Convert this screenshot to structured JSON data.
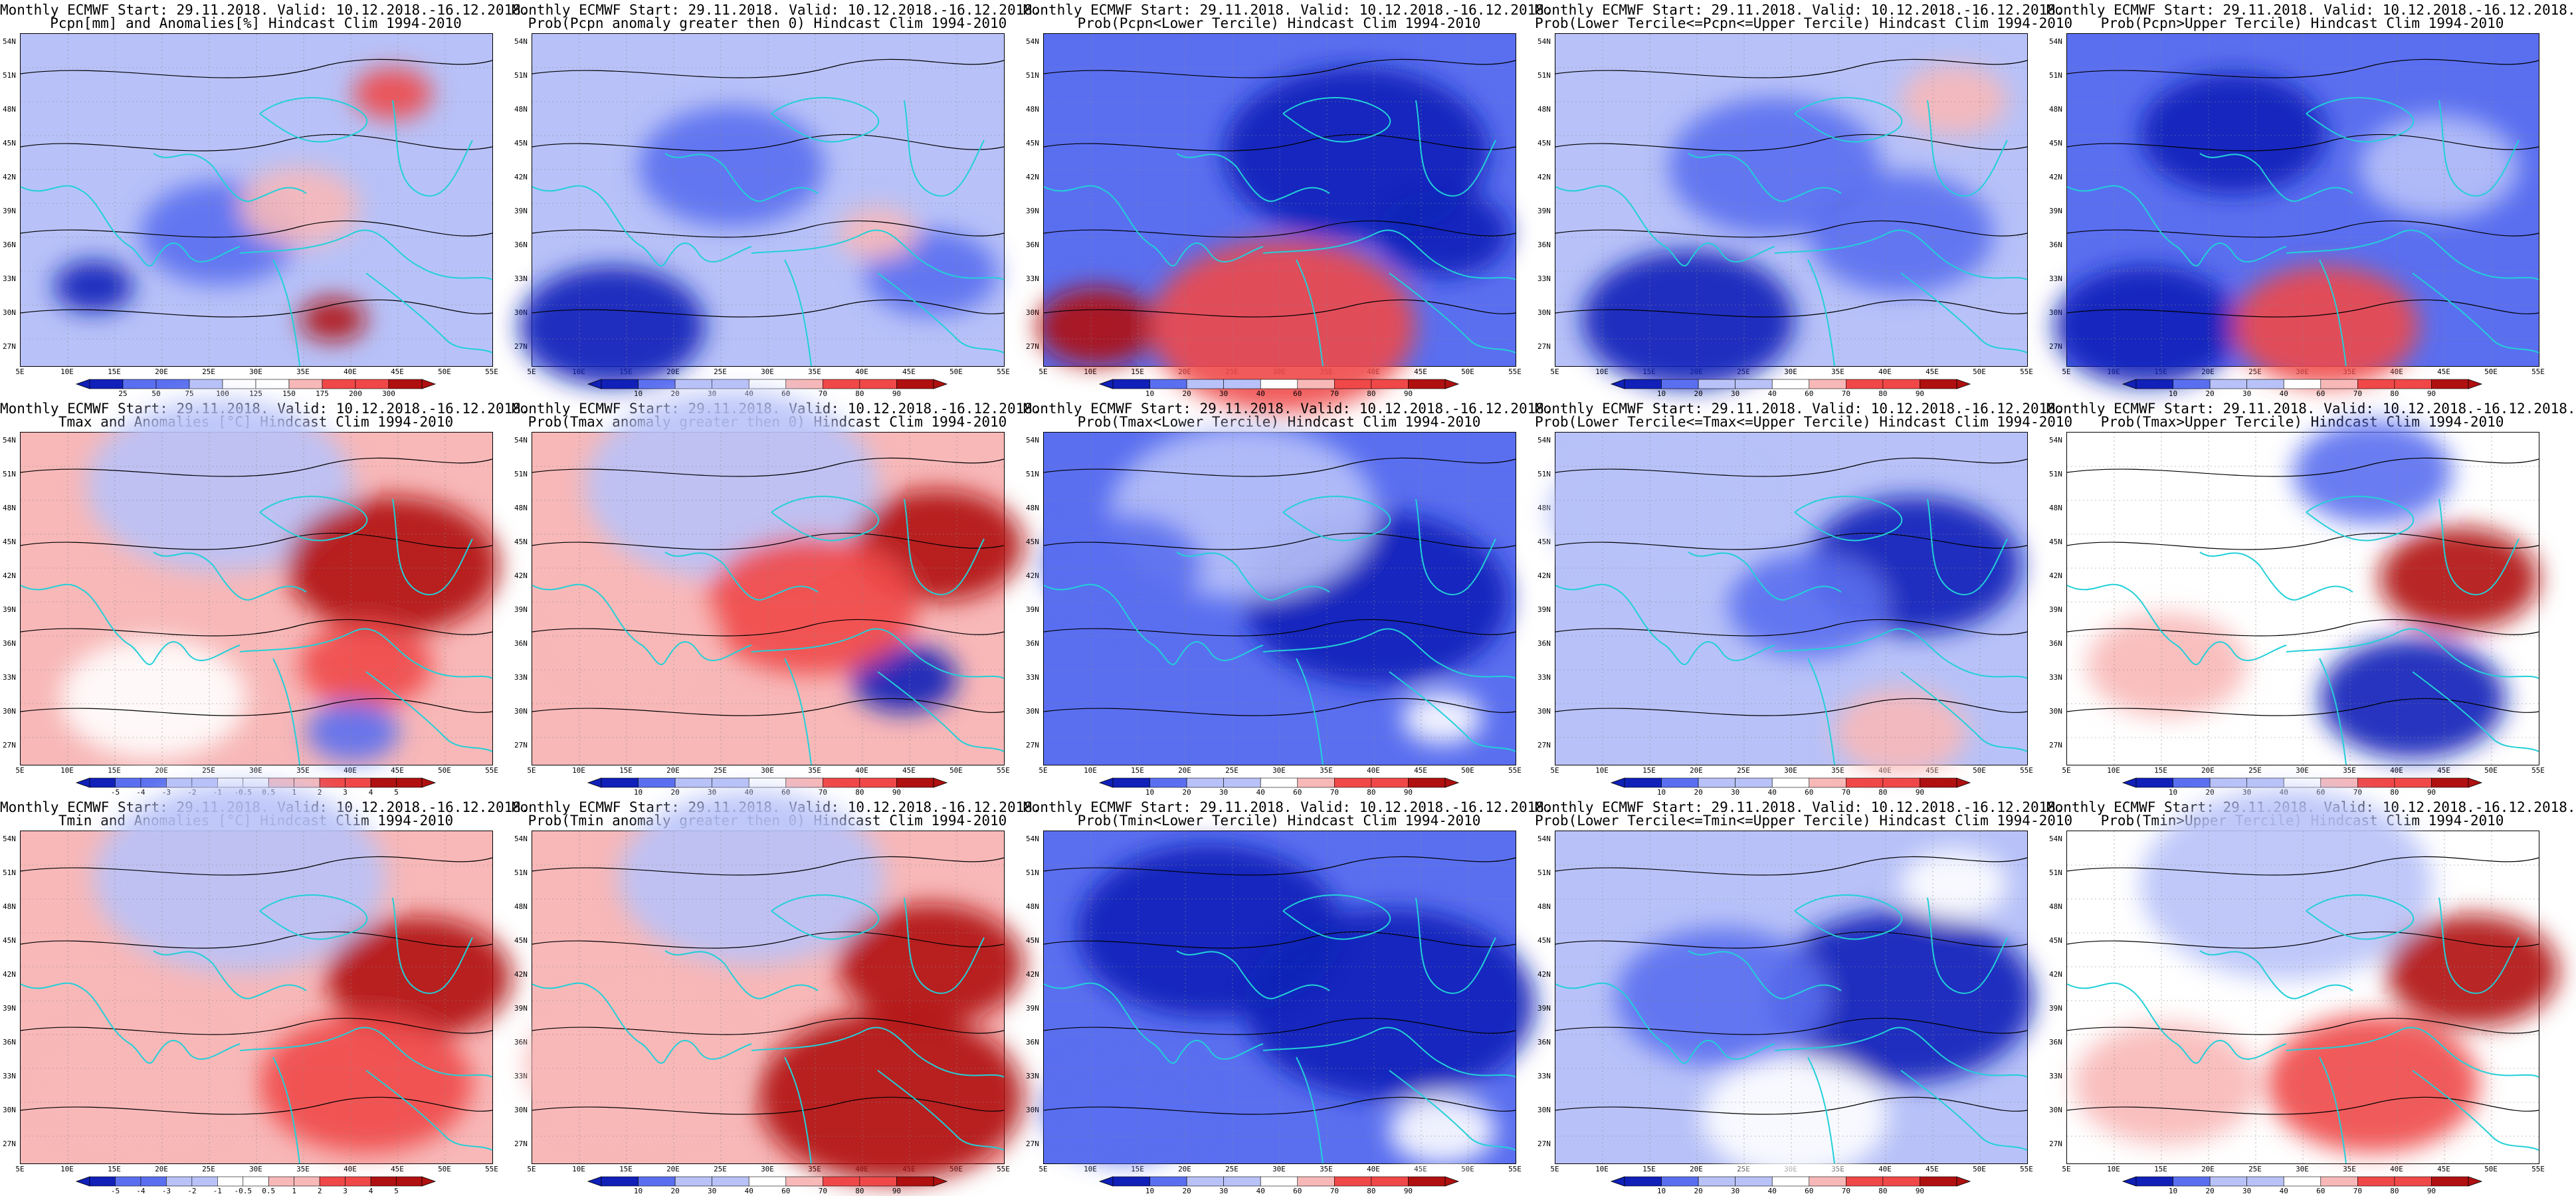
{
  "figure": {
    "latitudes": [
      "54N",
      "51N",
      "48N",
      "45N",
      "42N",
      "39N",
      "36N",
      "33N",
      "30N",
      "27N"
    ],
    "longitudes": [
      "5E",
      "10E",
      "15E",
      "20E",
      "25E",
      "30E",
      "35E",
      "40E",
      "45E",
      "50E",
      "55E"
    ],
    "panels": [
      {
        "title_line1": "Monthly ECMWF Start: 29.11.2018. Valid: 10.12.2018.-16.12.2018.",
        "title_line2": "Pcpn[mm] and Anomalies[%] Hindcast Clim 1994-2010",
        "colorbar": [
          "25",
          "50",
          "75",
          "100",
          "125",
          "150",
          "175",
          "200",
          "300"
        ],
        "palette": "anom"
      },
      {
        "title_line1": "Monthly ECMWF Start: 29.11.2018. Valid: 10.12.2018.-16.12.2018.",
        "title_line2": "Prob(Pcpn anomaly greater then 0) Hindcast Clim 1994-2010",
        "colorbar": [
          "10",
          "20",
          "30",
          "40",
          "60",
          "70",
          "80",
          "90"
        ],
        "palette": "prob"
      },
      {
        "title_line1": "Monthly ECMWF Start: 29.11.2018. Valid: 10.12.2018.-16.12.2018.",
        "title_line2": "Prob(Pcpn<Lower Tercile) Hindcast Clim 1994-2010",
        "colorbar": [
          "10",
          "20",
          "30",
          "40",
          "60",
          "70",
          "80",
          "90"
        ],
        "palette": "prob"
      },
      {
        "title_line1": "Monthly ECMWF Start: 29.11.2018. Valid: 10.12.2018.-16.12.2018.",
        "title_line2": "Prob(Lower Tercile<=Pcpn<=Upper Tercile) Hindcast Clim 1994-2010",
        "colorbar": [
          "10",
          "20",
          "30",
          "40",
          "60",
          "70",
          "80",
          "90"
        ],
        "palette": "prob"
      },
      {
        "title_line1": "Monthly ECMWF Start: 29.11.2018. Valid: 10.12.2018.-16.12.2018.",
        "title_line2": "Prob(Pcpn>Upper Tercile) Hindcast Clim 1994-2010",
        "colorbar": [
          "10",
          "20",
          "30",
          "40",
          "60",
          "70",
          "80",
          "90"
        ],
        "palette": "prob"
      },
      {
        "title_line1": "Monthly ECMWF Start: 29.11.2018. Valid: 10.12.2018.-16.12.2018.",
        "title_line2": "Tmax and Anomalies [°C] Hindcast Clim 1994-2010",
        "colorbar": [
          "-5",
          "-4",
          "-3",
          "-2",
          "-1",
          "-0.5",
          "0.5",
          "1",
          "2",
          "3",
          "4",
          "5"
        ],
        "palette": "anom"
      },
      {
        "title_line1": "Monthly ECMWF Start: 29.11.2018. Valid: 10.12.2018.-16.12.2018.",
        "title_line2": "Prob(Tmax anomaly greater then 0) Hindcast Clim 1994-2010",
        "colorbar": [
          "10",
          "20",
          "30",
          "40",
          "60",
          "70",
          "80",
          "90"
        ],
        "palette": "prob"
      },
      {
        "title_line1": "Monthly ECMWF Start: 29.11.2018. Valid: 10.12.2018.-16.12.2018.",
        "title_line2": "Prob(Tmax<Lower Tercile) Hindcast Clim 1994-2010",
        "colorbar": [
          "10",
          "20",
          "30",
          "40",
          "60",
          "70",
          "80",
          "90"
        ],
        "palette": "prob"
      },
      {
        "title_line1": "Monthly ECMWF Start: 29.11.2018. Valid: 10.12.2018.-16.12.2018.",
        "title_line2": "Prob(Lower Tercile<=Tmax<=Upper Tercile) Hindcast Clim 1994-2010",
        "colorbar": [
          "10",
          "20",
          "30",
          "40",
          "60",
          "70",
          "80",
          "90"
        ],
        "palette": "prob"
      },
      {
        "title_line1": "Monthly ECMWF Start: 29.11.2018. Valid: 10.12.2018.-16.12.2018.",
        "title_line2": "Prob(Tmax>Upper Tercile) Hindcast Clim 1994-2010",
        "colorbar": [
          "10",
          "20",
          "30",
          "40",
          "60",
          "70",
          "80",
          "90"
        ],
        "palette": "prob"
      },
      {
        "title_line1": "Monthly ECMWF Start: 29.11.2018. Valid: 10.12.2018.-16.12.2018.",
        "title_line2": "Tmin and Anomalies [°C] Hindcast Clim 1994-2010",
        "colorbar": [
          "-5",
          "-4",
          "-3",
          "-2",
          "-1",
          "-0.5",
          "0.5",
          "1",
          "2",
          "3",
          "4",
          "5"
        ],
        "palette": "anom"
      },
      {
        "title_line1": "Monthly ECMWF Start: 29.11.2018. Valid: 10.12.2018.-16.12.2018.",
        "title_line2": "Prob(Tmin anomaly greater then 0) Hindcast Clim 1994-2010",
        "colorbar": [
          "10",
          "20",
          "30",
          "40",
          "60",
          "70",
          "80",
          "90"
        ],
        "palette": "prob"
      },
      {
        "title_line1": "Monthly ECMWF Start: 29.11.2018. Valid: 10.12.2018.-16.12.2018.",
        "title_line2": "Prob(Tmin<Lower Tercile) Hindcast Clim 1994-2010",
        "colorbar": [
          "10",
          "20",
          "30",
          "40",
          "60",
          "70",
          "80",
          "90"
        ],
        "palette": "prob"
      },
      {
        "title_line1": "Monthly ECMWF Start: 29.11.2018. Valid: 10.12.2018.-16.12.2018.",
        "title_line2": "Prob(Lower Tercile<=Tmin<=Upper Tercile) Hindcast Clim 1994-2010",
        "colorbar": [
          "10",
          "20",
          "30",
          "40",
          "60",
          "70",
          "80",
          "90"
        ],
        "palette": "prob"
      },
      {
        "title_line1": "Monthly ECMWF Start: 29.11.2018. Valid: 10.12.2018.-16.12.2018.",
        "title_line2": "Prob(Tmin>Upper Tercile) Hindcast Clim 1994-2010",
        "colorbar": [
          "10",
          "20",
          "30",
          "40",
          "60",
          "70",
          "80",
          "90"
        ],
        "palette": "prob"
      }
    ]
  },
  "colors": {
    "blue_dark": "#1020b8",
    "blue_mid": "#5a6ff0",
    "blue_light": "#b8c2f8",
    "red_light": "#f8b8b8",
    "red_mid": "#f04848",
    "red_dark": "#b01010",
    "coast": "#22d0d8",
    "contour": "#000000"
  }
}
